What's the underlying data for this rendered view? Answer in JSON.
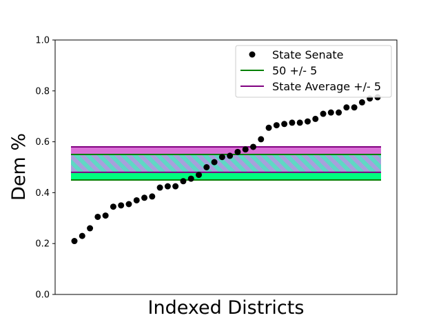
{
  "chart_data": {
    "type": "scatter",
    "xlabel": "Indexed Districts",
    "ylabel": "Dem %",
    "ylim": [
      0.0,
      1.0
    ],
    "yticks": [
      "0.0",
      "0.2",
      "0.4",
      "0.6",
      "0.8",
      "1.0"
    ],
    "yticks_values": [
      0.0,
      0.2,
      0.4,
      0.6,
      0.8,
      1.0
    ],
    "x_ticks_visible": false,
    "grid": false,
    "legend_position": "top-right",
    "series": [
      {
        "name": "State Senate",
        "marker": "circle",
        "color": "#000000",
        "values": [
          0.21,
          0.23,
          0.26,
          0.305,
          0.31,
          0.345,
          0.35,
          0.355,
          0.37,
          0.38,
          0.385,
          0.42,
          0.425,
          0.425,
          0.445,
          0.455,
          0.47,
          0.5,
          0.52,
          0.54,
          0.545,
          0.56,
          0.57,
          0.58,
          0.61,
          0.655,
          0.665,
          0.67,
          0.675,
          0.675,
          0.68,
          0.69,
          0.71,
          0.715,
          0.715,
          0.735,
          0.735,
          0.755,
          0.77,
          0.775
        ]
      }
    ],
    "bands": [
      {
        "name": "50 +/- 5",
        "center": 0.5,
        "margin": 0.05,
        "line_color": "#008000",
        "fill_color": "#00ff7f"
      },
      {
        "name": "State Average +/- 5",
        "center": 0.53,
        "margin": 0.05,
        "line_color": "#800080",
        "fill_color": "#da70d6"
      }
    ]
  }
}
